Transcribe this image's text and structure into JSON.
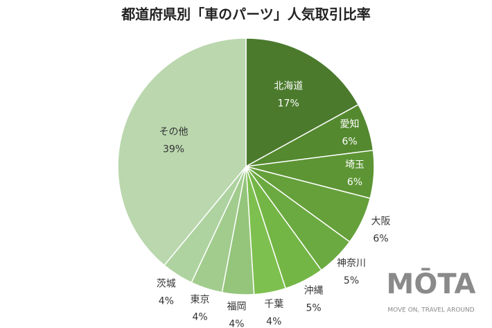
{
  "chart_data": {
    "type": "pie",
    "title": "都道府県別「車のパーツ」人気取引比率",
    "categories": [
      "北海道",
      "愛知",
      "埼玉",
      "大阪",
      "神奈川",
      "沖縄",
      "千葉",
      "福岡",
      "東京",
      "茨城",
      "その他"
    ],
    "values": [
      17,
      6,
      6,
      6,
      5,
      5,
      4,
      4,
      4,
      4,
      39
    ],
    "value_labels": [
      "17%",
      "6%",
      "6%",
      "6%",
      "5%",
      "5%",
      "4%",
      "4%",
      "4%",
      "4%",
      "39%"
    ],
    "colors": [
      "#4b7a2d",
      "#54892f",
      "#5d9535",
      "#65a03b",
      "#6baa40",
      "#74b646",
      "#7ec04f",
      "#94c57b",
      "#a2cc8e",
      "#aed3a0",
      "#bad7ae"
    ]
  },
  "logo": {
    "name": "MŌTA",
    "tagline": "MOVE ON, TRAVEL AROUND"
  }
}
